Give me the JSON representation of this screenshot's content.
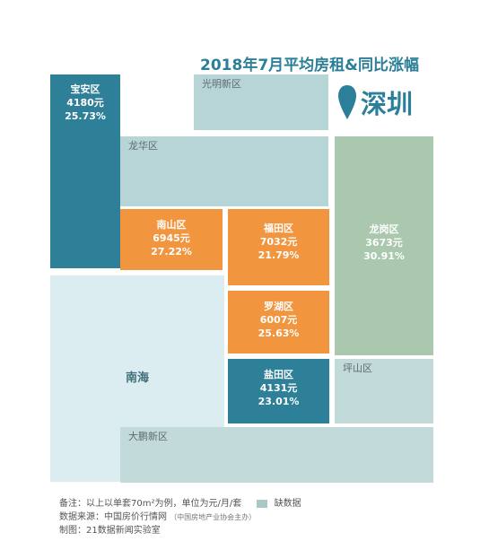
{
  "title": "2018年7月平均房租&同比涨幅",
  "city": "深圳",
  "colors": {
    "high": "#f1953f",
    "mid": "#2e7f98",
    "low": "#d8e8ec",
    "lowdark": "#a9cdcc",
    "missing": "#a9c8c6",
    "title": "#2c7f98"
  },
  "chart_data": {
    "type": "treemap",
    "title": "2018年7月平均房租&同比涨幅",
    "unit": "元",
    "districts": [
      {
        "name": "宝安区",
        "rent": 4180,
        "rent_label": "4180元",
        "growth": 25.73,
        "growth_label": "25.73%",
        "color": "#2e7f98"
      },
      {
        "name": "光明新区",
        "rent": null,
        "color": "#b7d5d6"
      },
      {
        "name": "龙华区",
        "rent": null,
        "color": "#b7d5d6"
      },
      {
        "name": "南山区",
        "rent": 6945,
        "rent_label": "6945元",
        "growth": 27.22,
        "growth_label": "27.22%",
        "color": "#f1953f"
      },
      {
        "name": "福田区",
        "rent": 7032,
        "rent_label": "7032元",
        "growth": 21.79,
        "growth_label": "21.79%",
        "color": "#f1953f"
      },
      {
        "name": "龙岗区",
        "rent": 3673,
        "rent_label": "3673元",
        "growth": 30.91,
        "growth_label": "30.91%",
        "color": "#a9c8ad"
      },
      {
        "name": "罗湖区",
        "rent": 6007,
        "rent_label": "6007元",
        "growth": 25.63,
        "growth_label": "25.63%",
        "color": "#f1953f"
      },
      {
        "name": "南海",
        "rent": null,
        "color": "#dcedf2"
      },
      {
        "name": "盐田区",
        "rent": 4131,
        "rent_label": "4131元",
        "growth": 23.01,
        "growth_label": "23.01%",
        "color": "#2e7f98"
      },
      {
        "name": "坪山区",
        "rent": null,
        "color": "#c3dadb"
      },
      {
        "name": "大鹏新区",
        "rent": null,
        "color": "#c3dadb"
      }
    ]
  },
  "legend": {
    "note": "备注：以上以单套70m²为例，单位为元/月/套",
    "missing_label": "缺数据",
    "source_prefix": "数据来源：中国房价行情网",
    "source_note": "（中国房地产业协会主办）",
    "maker": "制图：21数据新闻实验室"
  }
}
